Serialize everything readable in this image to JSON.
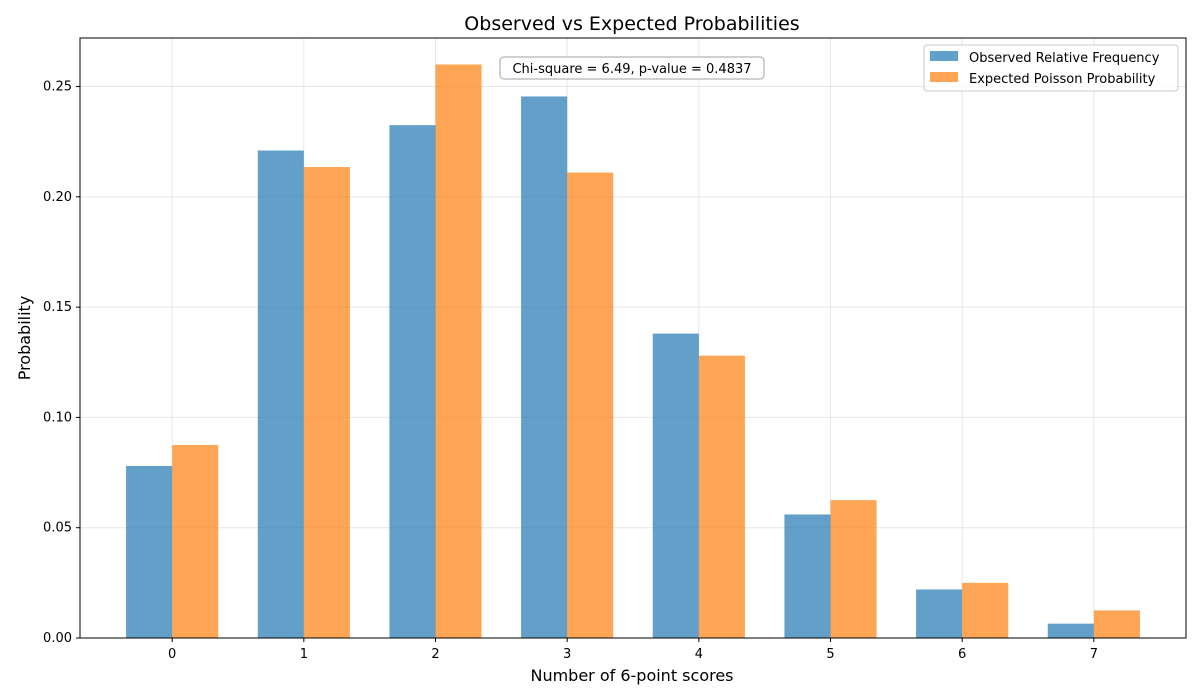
{
  "chart_data": {
    "type": "bar",
    "title": "Observed vs Expected Probabilities",
    "xlabel": "Number of 6-point scores",
    "ylabel": "Probability",
    "categories": [
      "0",
      "1",
      "2",
      "3",
      "4",
      "5",
      "6",
      "7"
    ],
    "series": [
      {
        "name": "Observed Relative Frequency",
        "color": "#1f77b4",
        "values": [
          0.078,
          0.221,
          0.2325,
          0.2455,
          0.138,
          0.056,
          0.022,
          0.0065
        ]
      },
      {
        "name": "Expected Poisson Probability",
        "color": "#ff7f0e",
        "values": [
          0.0875,
          0.2135,
          0.26,
          0.211,
          0.128,
          0.0625,
          0.025,
          0.0125
        ]
      }
    ],
    "ylim": [
      0,
      0.272
    ],
    "yticks": [
      "0.00",
      "0.05",
      "0.10",
      "0.15",
      "0.20",
      "0.25"
    ],
    "grid": true,
    "legend": "top-right",
    "annotation": "Chi-square = 6.49, p-value = 0.4837"
  }
}
